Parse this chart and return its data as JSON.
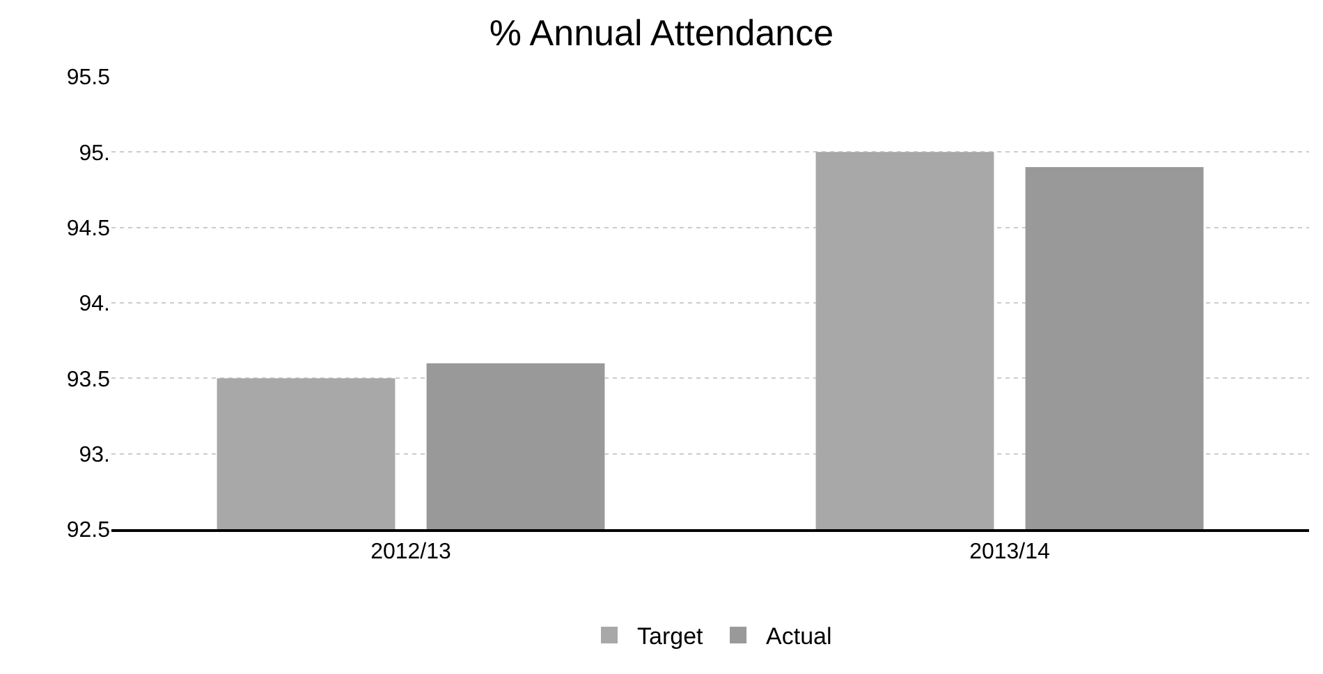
{
  "chart_data": {
    "type": "bar",
    "title": "% Annual Attendance",
    "categories": [
      "2012/13",
      "2013/14"
    ],
    "series": [
      {
        "name": "Target",
        "color": "#a8a8a8",
        "values": [
          93.5,
          95.0
        ]
      },
      {
        "name": "Actual",
        "color": "#999999",
        "values": [
          93.6,
          94.9
        ]
      }
    ],
    "ylim": [
      92.5,
      95.5
    ],
    "yticks": [
      92.5,
      {
        "value": 93,
        "label": "93."
      },
      93.5,
      {
        "value": 94,
        "label": "94."
      },
      94.5,
      {
        "value": 95,
        "label": "95."
      },
      95.5
    ],
    "grid": "y",
    "legend": "bottom"
  }
}
